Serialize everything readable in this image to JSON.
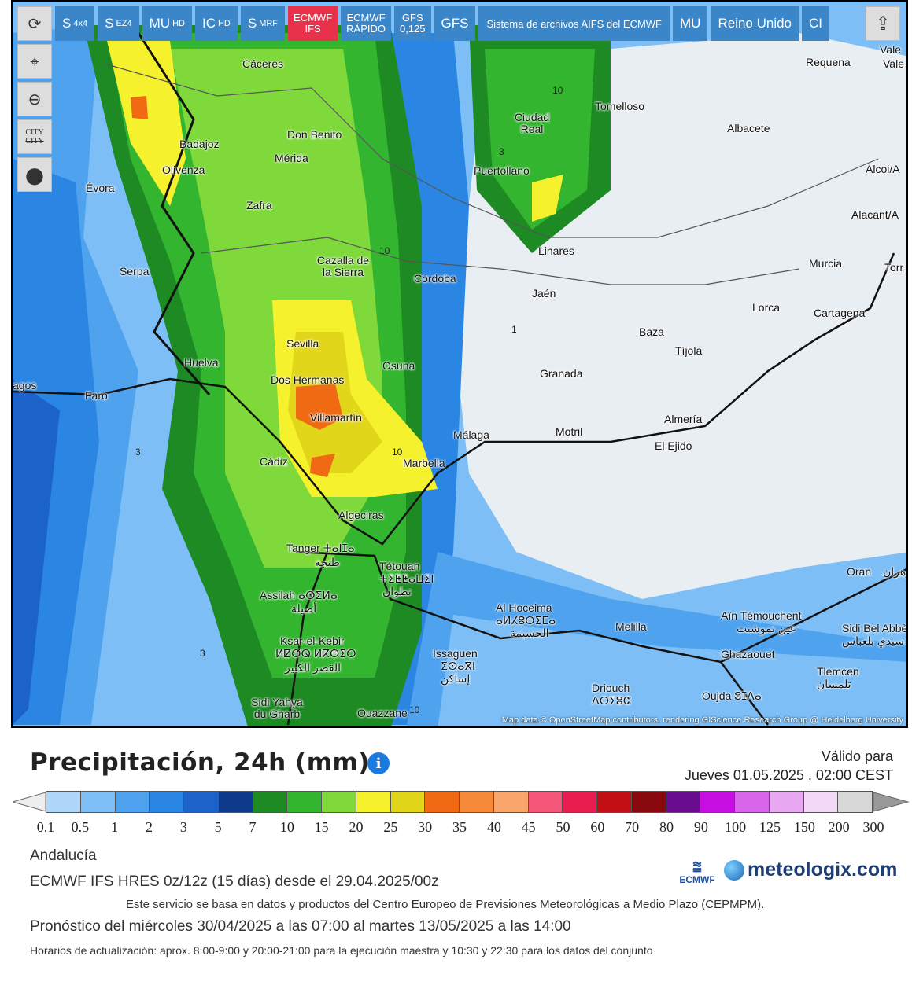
{
  "toolbar": {
    "buttons": [
      {
        "main": "S",
        "sub": "4x4"
      },
      {
        "main": "S",
        "sub": "EZ4"
      },
      {
        "main": "MU",
        "sub": "HD"
      },
      {
        "main": "IC",
        "sub": "HD"
      },
      {
        "main": "S",
        "sub": "MRF"
      },
      {
        "line1": "ECMWF",
        "line2": "IFS"
      },
      {
        "line1": "ECMWF",
        "line2": "RÁPIDO"
      },
      {
        "line1": "GFS",
        "line2": "0,125"
      },
      {
        "main": "GFS"
      },
      {
        "main": "Sistema de archivos AIFS del ECMWF"
      },
      {
        "main": "MU"
      },
      {
        "main": "Reino Unido"
      },
      {
        "main": "CI"
      }
    ]
  },
  "side": {
    "refresh_glyph": "⟳",
    "marker_glyph": "⌖",
    "zoom_glyph": "⊖",
    "city_top": "CITY",
    "city_bottom": "CITY",
    "pin_glyph": "●",
    "share_glyph": "⇪"
  },
  "icons": [
    "refresh-icon",
    "location-pin-icon",
    "zoom-out-icon",
    "city-toggle-icon",
    "marker-dot-icon",
    "share-icon"
  ],
  "map": {
    "cities": [
      {
        "name": "Cáceres"
      },
      {
        "name": "Badajoz"
      },
      {
        "name": "Olivenza"
      },
      {
        "name": "Don Benito"
      },
      {
        "name": "Mérida"
      },
      {
        "name": "Zafra"
      },
      {
        "name": "Évora"
      },
      {
        "name": "Serpa"
      },
      {
        "name": "Cazalla de la Sierra"
      },
      {
        "name": "Córdoba"
      },
      {
        "name": "Ciudad Real"
      },
      {
        "name": "Puertollano"
      },
      {
        "name": "Tomelloso"
      },
      {
        "name": "Albacete"
      },
      {
        "name": "Requena"
      },
      {
        "name": "Linares"
      },
      {
        "name": "Jaén"
      },
      {
        "name": "Murcia"
      },
      {
        "name": "Lorca"
      },
      {
        "name": "Cartagena"
      },
      {
        "name": "Baza"
      },
      {
        "name": "Tíjola"
      },
      {
        "name": "Granada"
      },
      {
        "name": "Sevilla"
      },
      {
        "name": "Huelva"
      },
      {
        "name": "Dos Hermanas"
      },
      {
        "name": "Osuna"
      },
      {
        "name": "Faro"
      },
      {
        "name": "Villamartín"
      },
      {
        "name": "Málaga"
      },
      {
        "name": "Motril"
      },
      {
        "name": "Almería"
      },
      {
        "name": "El Ejido"
      },
      {
        "name": "Cádiz"
      },
      {
        "name": "Marbella"
      },
      {
        "name": "Algeciras"
      },
      {
        "name": "Tanger ⵜⴰⵏⵊⴰ"
      },
      {
        "name": "طنجة"
      },
      {
        "name": "Tétouan"
      },
      {
        "name": "ⵜⵉⵟⵟⴰⵡⵉⵏ"
      },
      {
        "name": "تطوان"
      },
      {
        "name": "Assilah ⴰⵙⵉⵍⴰ"
      },
      {
        "name": "أصيلة"
      },
      {
        "name": "Al Hoceima"
      },
      {
        "name": "ⴰⵍⵃⵓⵙⵉⵎⴰ"
      },
      {
        "name": "الحسيمة"
      },
      {
        "name": "Melilla"
      },
      {
        "name": "Ksar-el-Kebir"
      },
      {
        "name": "ⵍⵇⵚⵕ ⵍⴽⴱⵉⵔ"
      },
      {
        "name": "القصر الكبير"
      },
      {
        "name": "Issaguen"
      },
      {
        "name": "ⵉⵙⴰⴳⵏ"
      },
      {
        "name": "إساكن"
      },
      {
        "name": "Driouch"
      },
      {
        "name": "ⴷⵔⵢⵓⵛ"
      },
      {
        "name": "Aïn Témouchent"
      },
      {
        "name": "عين تموشنت"
      },
      {
        "name": "Ghazaouet"
      },
      {
        "name": "Sidi Bel Abbès"
      },
      {
        "name": "سيدي بلعباس"
      },
      {
        "name": "Tlemcen"
      },
      {
        "name": "تلمسان"
      },
      {
        "name": "Oujda ⵓⵊⴷⴰ"
      },
      {
        "name": "Oran"
      },
      {
        "name": "وهران"
      },
      {
        "name": "Sidi Yahya du Gharb"
      },
      {
        "name": "Ouazzane"
      },
      {
        "name": "Alacant/A"
      },
      {
        "name": "Alcoi/A"
      },
      {
        "name": "Torr"
      },
      {
        "name": "Vale"
      },
      {
        "name": "Vale"
      },
      {
        "name": "agos"
      }
    ],
    "contour_labels": [
      "10",
      "3",
      "10",
      "1",
      "10",
      "3",
      "3",
      "10"
    ],
    "attribution": "Map data © OpenStreetMap contributors, rendering GIScience Research Group @ Heidelberg University"
  },
  "legend": {
    "title": "Precipitación, 24h (mm)",
    "info_glyph": "i",
    "valid_label": "Válido para",
    "valid_date": "Jueves 01.05.2025 , 02:00 CEST",
    "colors": [
      "#aed7fa",
      "#7cbef5",
      "#4fa3ee",
      "#2a86e2",
      "#1b63c8",
      "#0d3a8a",
      "#1d8a24",
      "#33b52f",
      "#7fd93a",
      "#f6f12d",
      "#e2d61a",
      "#ef6a12",
      "#f58a3a",
      "#f8a66c",
      "#f5577b",
      "#e91d50",
      "#c20f16",
      "#890a0e",
      "#6a0c8e",
      "#c60ee0",
      "#d866eb",
      "#e9a9f2",
      "#f3dbf7",
      "#d8d8d8"
    ],
    "ticks": [
      "0.1",
      "0.5",
      "1",
      "2",
      "3",
      "5",
      "7",
      "10",
      "15",
      "20",
      "25",
      "30",
      "35",
      "40",
      "45",
      "50",
      "60",
      "70",
      "80",
      "90",
      "100",
      "125",
      "150",
      "200",
      "300"
    ]
  },
  "footer": {
    "region": "Andalucía",
    "model": "ECMWF IFS HRES 0z/12z (15 días) desde el 29.04.2025/00z",
    "service": "Este servicio se basa en datos y productos del Centro Europeo de Previsiones Meteorológicas a Medio Plazo (CEPMPM).",
    "forecast": "Pronóstico del miércoles 30/04/2025 a las 07:00 al martes 13/05/2025 a las 14:00",
    "updates": "Horarios de actualización: aprox. 8:00-9:00 y 20:00-21:00 para la ejecución maestra y 10:30 y 22:30 para los datos del conjunto",
    "ecmwf_logo": "ECMWF",
    "meteo_logo": "meteologix.com"
  }
}
